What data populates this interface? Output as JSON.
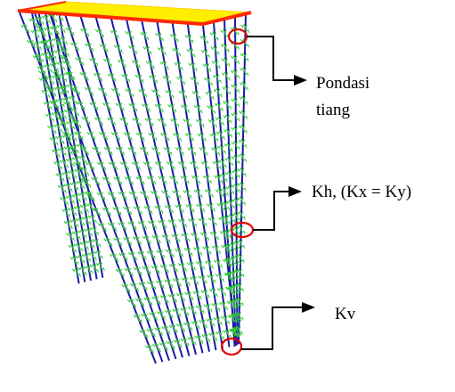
{
  "labels": {
    "pile_foundation": [
      "Pondasi",
      "tiang"
    ],
    "horizontal_spring": "Kh, (Kx = Ky)",
    "vertical_spring": "Kv"
  },
  "colors": {
    "pile": "#1a1aa8",
    "spring": "#33cc33",
    "cap_fill": "#ffee00",
    "cap_edge": "#ff2a00",
    "callout_circle": "#e00000",
    "arrow": "#000000"
  }
}
